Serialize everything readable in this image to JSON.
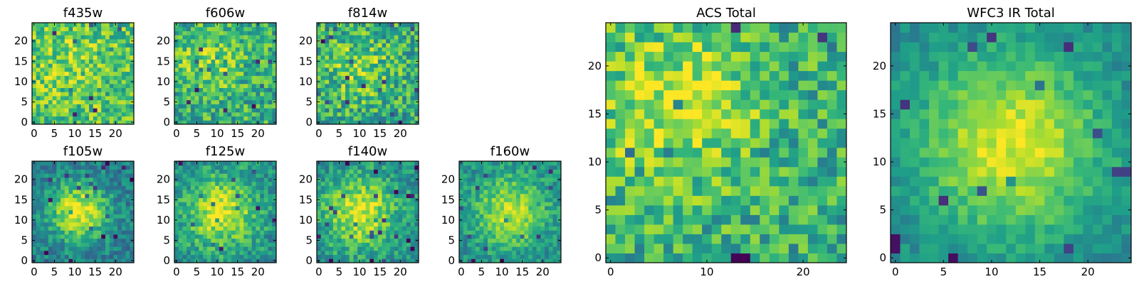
{
  "chart_data": [
    {
      "type": "heatmap",
      "title": "f435w",
      "colormap": "viridis",
      "grid_size": 25,
      "xlim": [
        0,
        24
      ],
      "ylim": [
        0,
        24
      ],
      "xticks": [
        0,
        5,
        10,
        15,
        20
      ],
      "yticks": [
        0,
        5,
        10,
        15,
        20
      ],
      "blob": {
        "cx": 8,
        "cy": 15,
        "sigma": 8,
        "amplitude": 0.1
      },
      "noise": 0.23,
      "baseline": 0.7,
      "seed": 11
    },
    {
      "type": "heatmap",
      "title": "f606w",
      "colormap": "viridis",
      "grid_size": 25,
      "xlim": [
        0,
        24
      ],
      "ylim": [
        0,
        24
      ],
      "xticks": [
        0,
        5,
        10,
        15,
        20
      ],
      "yticks": [
        0,
        5,
        10,
        15,
        20
      ],
      "blob": {
        "cx": 8,
        "cy": 15,
        "sigma": 6,
        "amplitude": 0.2
      },
      "noise": 0.23,
      "baseline": 0.62,
      "seed": 23
    },
    {
      "type": "heatmap",
      "title": "f814w",
      "colormap": "viridis",
      "grid_size": 25,
      "xlim": [
        0,
        24
      ],
      "ylim": [
        0,
        24
      ],
      "xticks": [
        0,
        5,
        10,
        15,
        20
      ],
      "yticks": [
        0,
        5,
        10,
        15,
        20
      ],
      "blob": {
        "cx": 10,
        "cy": 13,
        "sigma": 6,
        "amplitude": 0.2
      },
      "noise": 0.25,
      "baseline": 0.6,
      "seed": 37
    },
    {
      "type": "heatmap",
      "title": "f105w",
      "colormap": "viridis",
      "grid_size": 25,
      "xlim": [
        0,
        24
      ],
      "ylim": [
        0,
        24
      ],
      "xticks": [
        0,
        5,
        10,
        15,
        20
      ],
      "yticks": [
        0,
        5,
        10,
        15,
        20
      ],
      "blob": {
        "cx": 11,
        "cy": 12,
        "sigma": 5,
        "amplitude": 0.55
      },
      "noise": 0.16,
      "baseline": 0.42,
      "seed": 41
    },
    {
      "type": "heatmap",
      "title": "f125w",
      "colormap": "viridis",
      "grid_size": 25,
      "xlim": [
        0,
        24
      ],
      "ylim": [
        0,
        24
      ],
      "xticks": [
        0,
        5,
        10,
        15,
        20
      ],
      "yticks": [
        0,
        5,
        10,
        15,
        20
      ],
      "blob": {
        "cx": 11,
        "cy": 12,
        "sigma": 6,
        "amplitude": 0.45
      },
      "noise": 0.17,
      "baseline": 0.5,
      "seed": 53
    },
    {
      "type": "heatmap",
      "title": "f140w",
      "colormap": "viridis",
      "grid_size": 25,
      "xlim": [
        0,
        24
      ],
      "ylim": [
        0,
        24
      ],
      "xticks": [
        0,
        5,
        10,
        15,
        20
      ],
      "yticks": [
        0,
        5,
        10,
        15,
        20
      ],
      "blob": {
        "cx": 10,
        "cy": 12,
        "sigma": 6,
        "amplitude": 0.45
      },
      "noise": 0.17,
      "baseline": 0.5,
      "seed": 67
    },
    {
      "type": "heatmap",
      "title": "f160w",
      "colormap": "viridis",
      "grid_size": 25,
      "xlim": [
        0,
        24
      ],
      "ylim": [
        0,
        24
      ],
      "xticks": [
        0,
        5,
        10,
        15,
        20
      ],
      "yticks": [
        0,
        5,
        10,
        15,
        20
      ],
      "blob": {
        "cx": 12,
        "cy": 12,
        "sigma": 6,
        "amplitude": 0.4
      },
      "noise": 0.15,
      "baseline": 0.5,
      "seed": 79
    },
    {
      "type": "heatmap",
      "title": "ACS Total",
      "colormap": "viridis",
      "grid_size": 25,
      "xlim": [
        0,
        24
      ],
      "ylim": [
        0,
        24
      ],
      "xticks": [
        0,
        10,
        20
      ],
      "yticks": [
        0,
        5,
        10,
        15,
        20
      ],
      "blob": {
        "cx": 7,
        "cy": 16,
        "sigma": 6,
        "amplitude": 0.3
      },
      "noise": 0.22,
      "baseline": 0.62,
      "seed": 97
    },
    {
      "type": "heatmap",
      "title": "WFC3 IR Total",
      "colormap": "viridis",
      "grid_size": 25,
      "xlim": [
        0,
        24
      ],
      "ylim": [
        0,
        24
      ],
      "xticks": [
        0,
        5,
        10,
        15,
        20
      ],
      "yticks": [
        0,
        5,
        10,
        15,
        20
      ],
      "blob": {
        "cx": 12,
        "cy": 12,
        "sigma": 7,
        "amplitude": 0.5
      },
      "noise": 0.1,
      "baseline": 0.45,
      "seed": 101
    }
  ]
}
